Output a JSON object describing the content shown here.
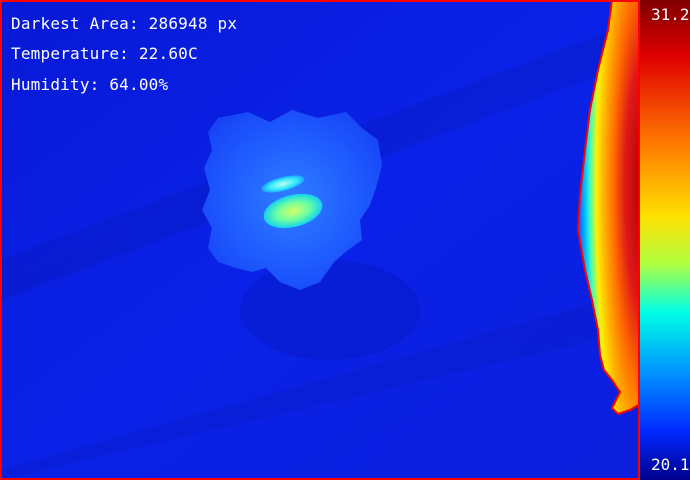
{
  "overlay": {
    "darkest_area": "Darkest Area: 286948 px",
    "temperature": "Temperature: 22.60C",
    "humidity": "Humidity: 64.00%"
  },
  "colorbar": {
    "max_label": "31.2",
    "min_label": "20.1",
    "colormap": "jet"
  },
  "colors": {
    "background_blue": "#0a1fe6",
    "contour_red": "#ff0000",
    "hot_core": "#d0141a",
    "warm_orange": "#ff8a00",
    "mid_yellow": "#ffe000",
    "cool_cyan": "#00e6ff",
    "blob_blue": "#1f5cff",
    "spot_green": "#9cff6a"
  }
}
